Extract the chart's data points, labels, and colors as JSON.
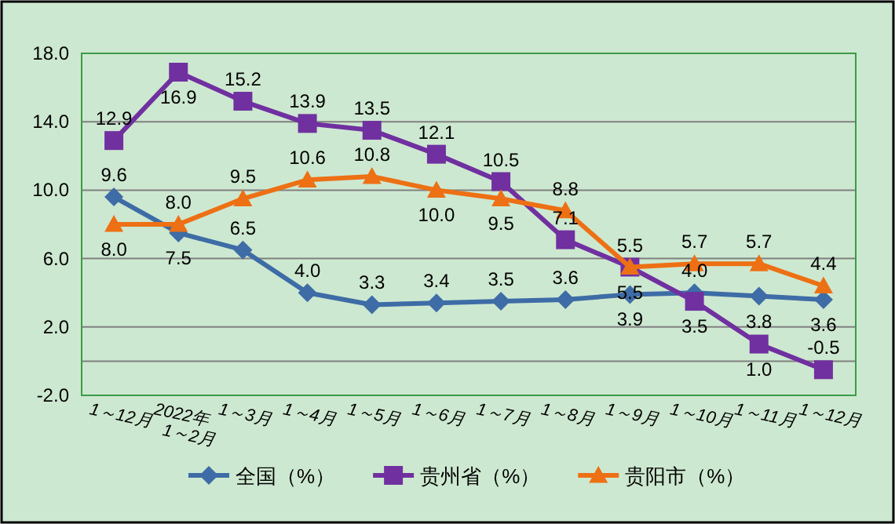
{
  "chart_data": {
    "type": "line",
    "categories": [
      "1～12月",
      "2022年1～2月",
      "1～3月",
      "1～4月",
      "1～5月",
      "1～6月",
      "1～7月",
      "1～8月",
      "1～9月",
      "1～10月",
      "1～11月",
      "1～12月"
    ],
    "series": [
      {
        "name": "全国（%）",
        "color": "#3e6ca6",
        "marker": "diamond",
        "values": [
          9.6,
          7.5,
          6.5,
          4.0,
          3.3,
          3.4,
          3.5,
          3.6,
          3.9,
          4.0,
          3.8,
          3.6
        ],
        "value_labels": [
          "9.6",
          "7.5",
          "6.5",
          "4.0",
          "3.3",
          "3.4",
          "3.5",
          "3.6",
          "3.9",
          "4.0",
          "3.8",
          "3.6"
        ]
      },
      {
        "name": "贵州省（%）",
        "color": "#7030a0",
        "marker": "square",
        "values": [
          12.9,
          16.9,
          15.2,
          13.9,
          13.5,
          12.1,
          10.5,
          7.1,
          5.5,
          3.5,
          1.0,
          -0.5
        ],
        "value_labels": [
          "12.9",
          "16.9",
          "15.2",
          "13.9",
          "13.5",
          "12.1",
          "10.5",
          "7.1",
          "5.5",
          "3.5",
          "1.0",
          "-0.5"
        ]
      },
      {
        "name": "贵阳市（%）",
        "color": "#ed7014",
        "marker": "triangle",
        "values": [
          8.0,
          8.0,
          9.5,
          10.6,
          10.8,
          10.0,
          9.5,
          8.8,
          5.5,
          5.7,
          5.7,
          4.4
        ],
        "value_labels": [
          "8.0",
          "8.0",
          "9.5",
          "10.6",
          "10.8",
          "10.0",
          "9.5",
          "8.8",
          "5.5",
          "5.7",
          "5.7",
          "4.4"
        ]
      }
    ],
    "ylim": [
      -2.0,
      18.0
    ],
    "yticks": [
      {
        "value": -2,
        "label": "-2.0"
      },
      {
        "value": 2,
        "label": "2.0"
      },
      {
        "value": 6,
        "label": "6.0"
      },
      {
        "value": 10,
        "label": "10.0"
      },
      {
        "value": 14,
        "label": "14.0"
      },
      {
        "value": 18,
        "label": "18.0"
      }
    ],
    "ref_lines": [
      {
        "axis": "y",
        "value": 0,
        "color": "#808080"
      }
    ],
    "grid": "y",
    "legend": "bottom",
    "line_style": "solid"
  }
}
